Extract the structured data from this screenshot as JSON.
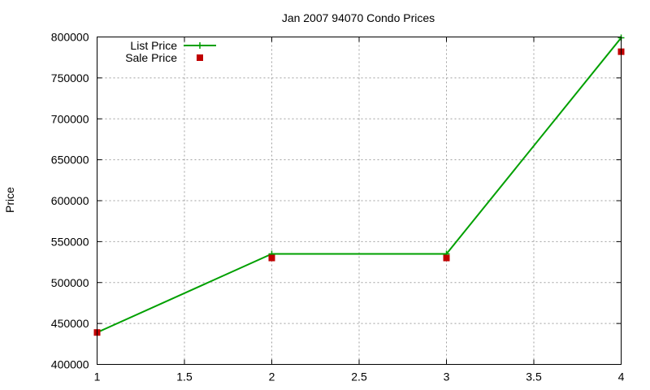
{
  "chart_data": {
    "type": "line",
    "title": "Jan 2007 94070 Condo Prices",
    "xlabel": "",
    "ylabel": "Price",
    "xlim": [
      1,
      4
    ],
    "ylim": [
      400000,
      800000
    ],
    "x_ticks": [
      "1",
      "1.5",
      "2",
      "2.5",
      "3",
      "3.5",
      "4"
    ],
    "y_ticks": [
      "400000",
      "450000",
      "500000",
      "550000",
      "600000",
      "650000",
      "700000",
      "750000",
      "800000"
    ],
    "grid": true,
    "legend_position": "top-left",
    "series": [
      {
        "name": "List Price",
        "style": "lines+points",
        "marker": "plus",
        "color": "#00a000",
        "x": [
          1,
          2,
          3,
          4
        ],
        "y": [
          439000,
          535000,
          535000,
          799000
        ]
      },
      {
        "name": "Sale Price",
        "style": "points",
        "marker": "square",
        "color": "#c00000",
        "x": [
          1,
          2,
          3,
          4
        ],
        "y": [
          439000,
          530000,
          530000,
          782000
        ]
      }
    ]
  }
}
